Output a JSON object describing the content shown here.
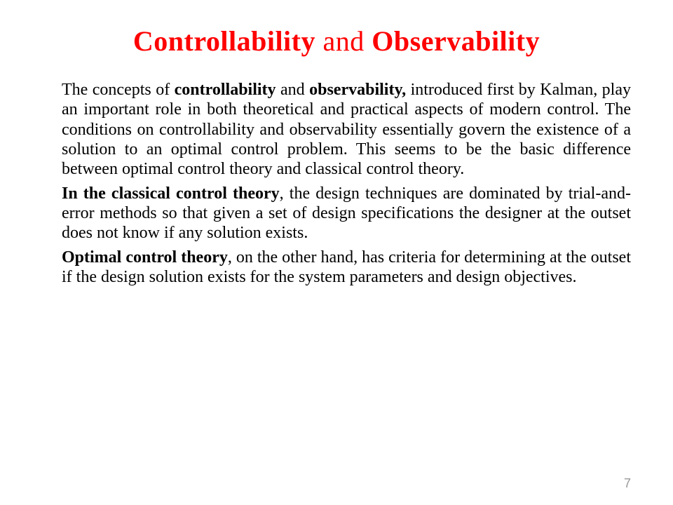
{
  "title": {
    "part1_bold": "Controllability",
    "part2_plain": " and ",
    "part3_bold": "Observability"
  },
  "paragraphs": {
    "p1": {
      "s1": "The concepts of ",
      "s2_bold": "controllability",
      "s3": " and ",
      "s4_bold": "observability,",
      "s5": " introduced first by Kalman, play an important role in both theoretical and practical aspects of modern control. The conditions on controllability and observability essentially govern the existence of a solution to an optimal control problem. This seems to be the basic difference between optimal control theory and classical control theory."
    },
    "p2": {
      "s1_bold": "In the classical control theory",
      "s2": ", the design techniques are dominated by trial-and-error methods so that given a set of design specifications the designer at the outset does not know if any solution exists."
    },
    "p3": {
      "s1_bold": "Optimal control theory",
      "s2": ", on the other hand, has criteria for determining at the outset if the design solution exists for the system parameters and design objectives."
    }
  },
  "page_number": "7",
  "styles": {
    "title_color": "#ff0000",
    "title_fontsize": 40,
    "body_color": "#000000",
    "body_fontsize": 24,
    "background_color": "#ffffff",
    "page_number_color": "#999999"
  }
}
